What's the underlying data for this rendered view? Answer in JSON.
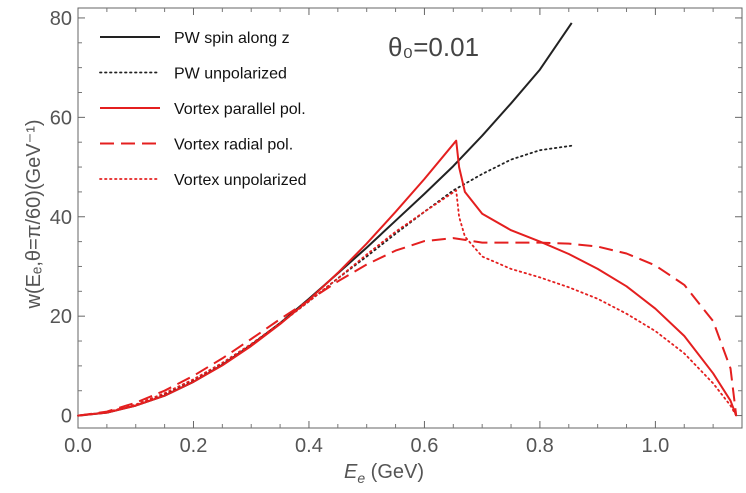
{
  "chart_data": {
    "type": "line",
    "title": "",
    "annotation": "θ₀=0.01",
    "xlabel": {
      "var": "E",
      "sub": "e",
      "unit": " (GeV)"
    },
    "ylabel": "w(Eₑ,θ=π/60)(GeV⁻¹)",
    "xlim": [
      0,
      1.15
    ],
    "ylim": [
      -2.5,
      82
    ],
    "xticks": [
      0.0,
      0.2,
      0.4,
      0.6,
      0.8,
      1.0
    ],
    "xtick_labels": [
      "0.0",
      "0.2",
      "0.4",
      "0.6",
      "0.8",
      "1.0"
    ],
    "yticks": [
      0,
      20,
      40,
      60,
      80
    ],
    "ytick_labels": [
      "0",
      "20",
      "40",
      "60",
      "80"
    ],
    "grid": false,
    "legend_position": "top-left",
    "series": [
      {
        "name": "PW spin along z",
        "color": "#222222",
        "style": "solid",
        "x": [
          0.0,
          0.05,
          0.1,
          0.15,
          0.2,
          0.25,
          0.3,
          0.35,
          0.4,
          0.45,
          0.5,
          0.55,
          0.6,
          0.65,
          0.7,
          0.75,
          0.8,
          0.855
        ],
        "y": [
          0.0,
          0.6,
          2.0,
          4.0,
          6.8,
          10.2,
          14.2,
          18.6,
          23.5,
          28.6,
          33.8,
          39.2,
          44.6,
          50.2,
          56.3,
          62.8,
          69.6,
          79.0
        ]
      },
      {
        "name": "PW unpolarized",
        "color": "#222222",
        "style": "dotted",
        "x": [
          0.0,
          0.05,
          0.1,
          0.15,
          0.2,
          0.25,
          0.3,
          0.35,
          0.4,
          0.45,
          0.5,
          0.55,
          0.6,
          0.65,
          0.7,
          0.75,
          0.8,
          0.855
        ],
        "y": [
          0.0,
          0.6,
          2.1,
          4.2,
          7.0,
          10.3,
          14.2,
          18.5,
          23.0,
          27.6,
          32.0,
          36.6,
          41.0,
          45.3,
          48.6,
          51.5,
          53.4,
          54.3
        ]
      },
      {
        "name": "Vortex parallel pol.",
        "color": "#e41f1f",
        "style": "solid",
        "x": [
          0.0,
          0.05,
          0.1,
          0.15,
          0.2,
          0.25,
          0.3,
          0.35,
          0.4,
          0.45,
          0.5,
          0.55,
          0.6,
          0.655,
          0.66,
          0.67,
          0.7,
          0.75,
          0.8,
          0.85,
          0.9,
          0.95,
          1.0,
          1.05,
          1.1,
          1.13,
          1.14
        ],
        "y": [
          0.0,
          0.6,
          2.0,
          4.0,
          6.8,
          10.1,
          14.0,
          18.4,
          23.3,
          28.7,
          34.6,
          41.0,
          47.6,
          55.3,
          50.0,
          45.0,
          40.6,
          37.3,
          35.0,
          32.5,
          29.5,
          26.0,
          21.5,
          16.0,
          8.5,
          3.0,
          0.0
        ]
      },
      {
        "name": "Vortex radial pol.",
        "color": "#e41f1f",
        "style": "dashed",
        "x": [
          0.0,
          0.05,
          0.1,
          0.15,
          0.2,
          0.25,
          0.3,
          0.35,
          0.4,
          0.45,
          0.5,
          0.55,
          0.6,
          0.65,
          0.7,
          0.75,
          0.8,
          0.85,
          0.9,
          0.95,
          1.0,
          1.05,
          1.1,
          1.13,
          1.14
        ],
        "y": [
          0.0,
          0.8,
          2.6,
          5.0,
          8.0,
          11.5,
          15.4,
          19.4,
          23.2,
          27.0,
          30.4,
          33.2,
          35.1,
          35.7,
          34.8,
          34.8,
          34.8,
          34.6,
          34.0,
          32.6,
          30.2,
          26.3,
          19.0,
          9.5,
          0.0
        ]
      },
      {
        "name": "Vortex unpolarized",
        "color": "#e41f1f",
        "style": "dotted",
        "x": [
          0.0,
          0.05,
          0.1,
          0.15,
          0.2,
          0.25,
          0.3,
          0.35,
          0.4,
          0.45,
          0.5,
          0.55,
          0.6,
          0.655,
          0.66,
          0.67,
          0.7,
          0.75,
          0.8,
          0.85,
          0.9,
          0.95,
          1.0,
          1.05,
          1.1,
          1.13,
          1.14
        ],
        "y": [
          0.0,
          0.7,
          2.2,
          4.5,
          7.3,
          10.6,
          14.4,
          18.6,
          23.0,
          27.6,
          32.4,
          37.0,
          41.0,
          45.3,
          40.0,
          36.0,
          32.0,
          29.5,
          27.8,
          25.8,
          23.5,
          20.5,
          17.0,
          12.5,
          6.5,
          2.0,
          0.0
        ]
      }
    ]
  }
}
